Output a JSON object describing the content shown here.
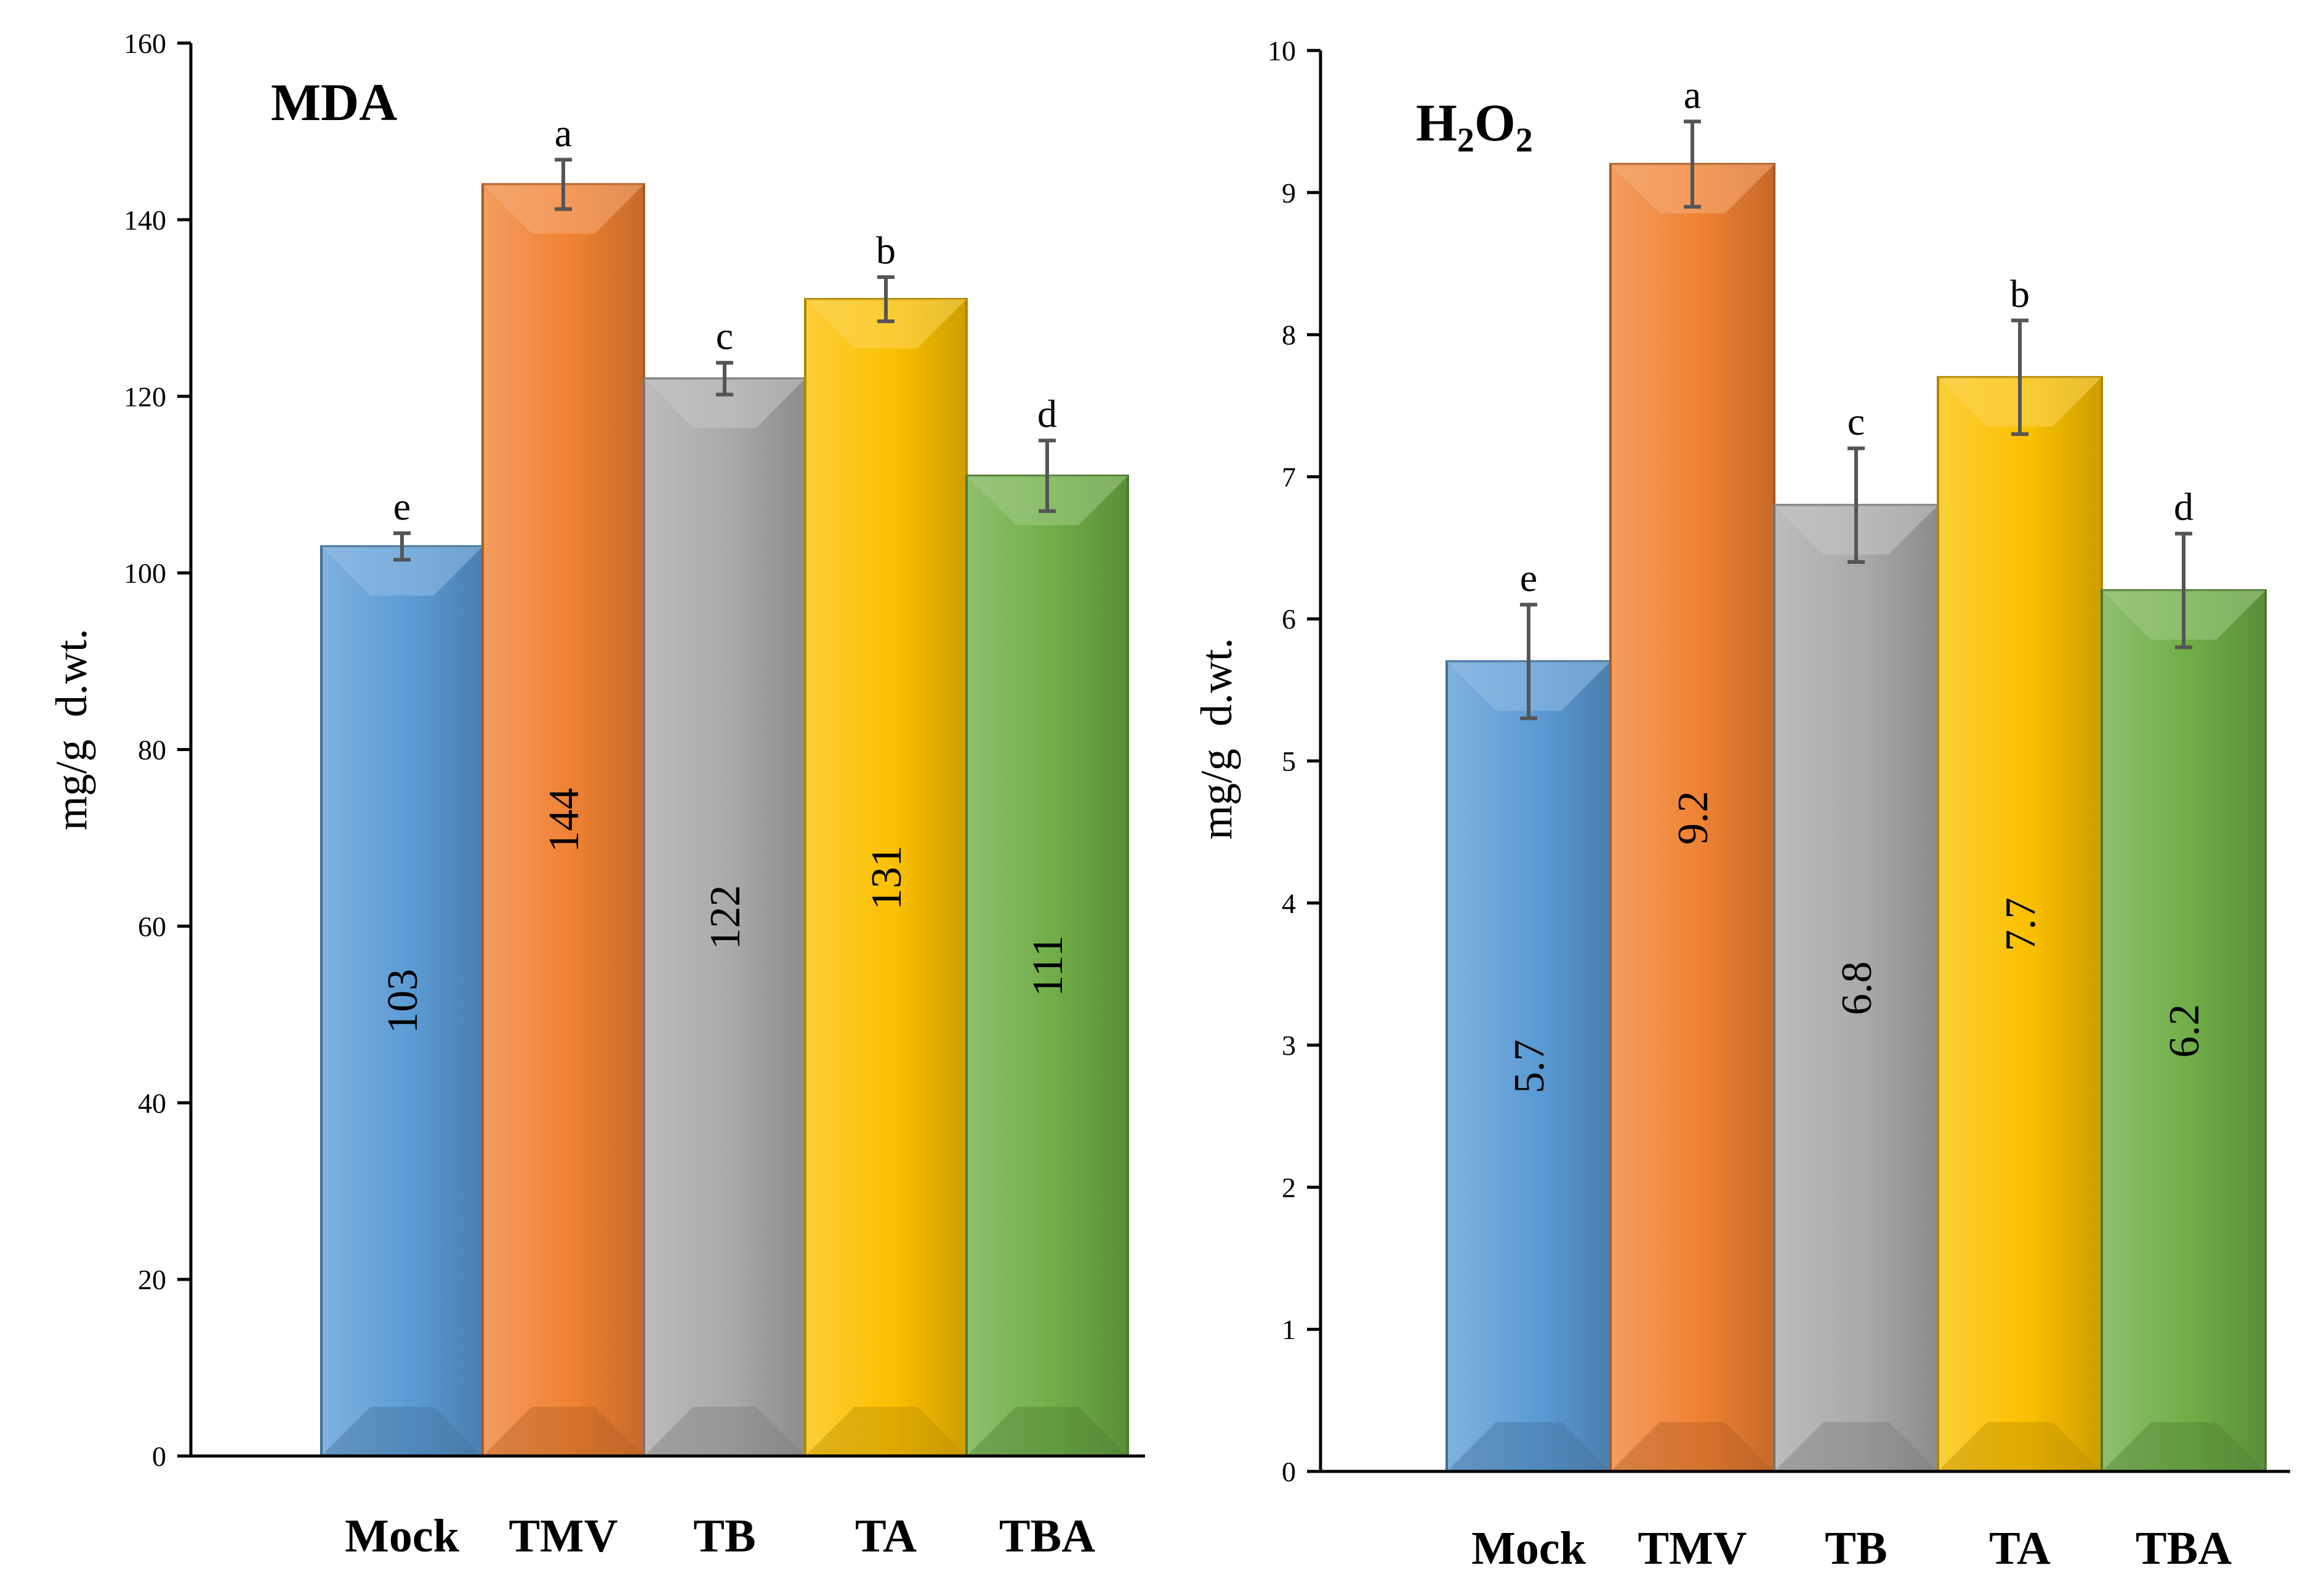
{
  "chart_data": [
    {
      "type": "bar",
      "title": "MDA",
      "title_parts": {
        "main": "MDA",
        "sub1": "",
        "mid": "",
        "sub2": ""
      },
      "ylabel": "mg/g  d.wt.",
      "xlabel": "",
      "ylim": [
        0,
        160
      ],
      "yticks": [
        0,
        20,
        40,
        60,
        80,
        100,
        120,
        140,
        160
      ],
      "categories": [
        "Mock",
        "TMV",
        "TB",
        "TA",
        "TBA"
      ],
      "values": [
        103,
        144,
        122,
        131,
        111
      ],
      "value_labels": [
        "103",
        "144",
        "122",
        "131",
        "111"
      ],
      "errors": [
        1.5,
        2.8,
        1.8,
        2.5,
        4.0
      ],
      "letters": [
        "e",
        "a",
        "c",
        "b",
        "d"
      ],
      "colors": [
        "#5b9bd5",
        "#f08132",
        "#a9a9a9",
        "#fbc000",
        "#6fad46"
      ],
      "grid": false,
      "legend": "none"
    },
    {
      "type": "bar",
      "title": "H2O2",
      "title_parts": {
        "main": "H",
        "sub1": "2",
        "mid": "O",
        "sub2": "2"
      },
      "ylabel": "mg/g  d.wt.",
      "xlabel": "",
      "ylim": [
        0,
        10
      ],
      "yticks": [
        0,
        1,
        2,
        3,
        4,
        5,
        6,
        7,
        8,
        9,
        10
      ],
      "categories": [
        "Mock",
        "TMV",
        "TB",
        "TA",
        "TBA"
      ],
      "values": [
        5.7,
        9.2,
        6.8,
        7.7,
        6.2
      ],
      "value_labels": [
        "5.7",
        "9.2",
        "6.8",
        "7.7",
        "6.2"
      ],
      "errors": [
        0.4,
        0.3,
        0.4,
        0.4,
        0.4
      ],
      "letters": [
        "e",
        "a",
        "c",
        "b",
        "d"
      ],
      "colors": [
        "#5b9bd5",
        "#f08132",
        "#a9a9a9",
        "#fbc000",
        "#6fad46"
      ],
      "grid": false,
      "legend": "none"
    }
  ]
}
